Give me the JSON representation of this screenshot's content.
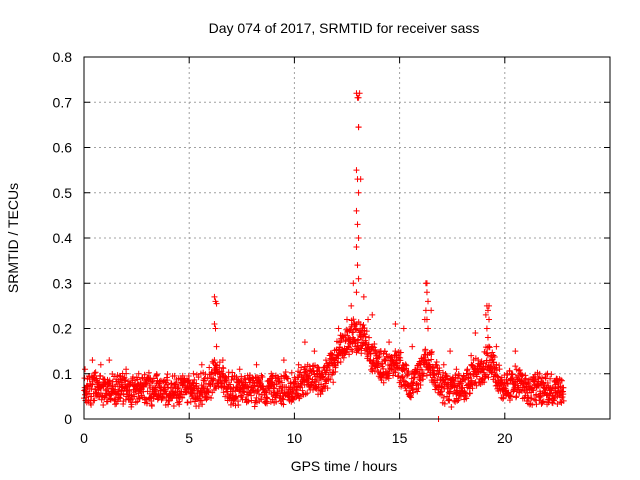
{
  "chart_data": {
    "type": "scatter",
    "title": "Day 074 of 2017, SRMTID for receiver sass",
    "xlabel": "GPS time / hours",
    "ylabel": "SRMTID / TECUs",
    "xlim": [
      0,
      25
    ],
    "ylim": [
      0,
      0.8
    ],
    "x_ticks": [
      0,
      5,
      10,
      15,
      20
    ],
    "y_ticks": [
      0,
      0.1,
      0.2,
      0.3,
      0.4,
      0.5,
      0.6,
      0.7,
      0.8
    ],
    "x_tick_labels": [
      "0",
      "5",
      "10",
      "15",
      "20"
    ],
    "y_tick_labels": [
      "0",
      "0.1",
      "0.2",
      "0.3",
      "0.4",
      "0.5",
      "0.6",
      "0.7",
      "0.8"
    ],
    "grid": true,
    "marker": "+",
    "color": "#ff0000",
    "series": [
      {
        "name": "SRMTID",
        "x_range": [
          0,
          22.8
        ],
        "baseline_mean": 0.065,
        "baseline_spread": 0.03,
        "features": [
          {
            "x": 6.25,
            "values": [
              0.27,
              0.26,
              0.255,
              0.21,
              0.2,
              0.16,
              0.13,
              0.12
            ]
          },
          {
            "x": 13.0,
            "values": [
              0.72,
              0.71,
              0.645,
              0.55,
              0.53,
              0.5,
              0.46,
              0.43,
              0.4,
              0.38,
              0.34,
              0.31,
              0.28
            ]
          },
          {
            "x": 16.3,
            "values": [
              0.3,
              0.28,
              0.26,
              0.24,
              0.22,
              0.2
            ]
          },
          {
            "x": 19.2,
            "values": [
              0.25,
              0.24,
              0.22,
              0.2,
              0.18
            ]
          }
        ],
        "points": [
          [
            0.05,
            0.11
          ],
          [
            0.4,
            0.13
          ],
          [
            0.8,
            0.12
          ],
          [
            1.2,
            0.13
          ],
          [
            2.0,
            0.11
          ],
          [
            2.6,
            0.1
          ],
          [
            3.1,
            0.09
          ],
          [
            4.0,
            0.07
          ],
          [
            4.6,
            0.09
          ],
          [
            5.2,
            0.1
          ],
          [
            5.6,
            0.12
          ],
          [
            6.6,
            0.13
          ],
          [
            7.4,
            0.11
          ],
          [
            8.2,
            0.12
          ],
          [
            8.9,
            0.1
          ],
          [
            9.5,
            0.13
          ],
          [
            10.2,
            0.12
          ],
          [
            10.5,
            0.17
          ],
          [
            10.95,
            0.15
          ],
          [
            11.5,
            0.13
          ],
          [
            11.9,
            0.12
          ],
          [
            12.1,
            0.2
          ],
          [
            12.2,
            0.17
          ],
          [
            12.5,
            0.22
          ],
          [
            12.7,
            0.25
          ],
          [
            12.8,
            0.3
          ],
          [
            13.05,
            0.645
          ],
          [
            13.05,
            0.71
          ],
          [
            13.1,
            0.72
          ],
          [
            13.15,
            0.53
          ],
          [
            13.3,
            0.27
          ],
          [
            13.5,
            0.22
          ],
          [
            13.7,
            0.23
          ],
          [
            14.1,
            0.15
          ],
          [
            14.5,
            0.17
          ],
          [
            14.8,
            0.21
          ],
          [
            15.2,
            0.2
          ],
          [
            15.6,
            0.16
          ],
          [
            16.0,
            0.12
          ],
          [
            16.2,
            0.22
          ],
          [
            16.3,
            0.3
          ],
          [
            16.5,
            0.24
          ],
          [
            17.1,
            0.12
          ],
          [
            17.4,
            0.15
          ],
          [
            17.7,
            0.11
          ],
          [
            18.0,
            0.09
          ],
          [
            18.4,
            0.14
          ],
          [
            18.6,
            0.19
          ],
          [
            19.1,
            0.23
          ],
          [
            19.25,
            0.25
          ],
          [
            19.6,
            0.16
          ],
          [
            20.1,
            0.1
          ],
          [
            20.5,
            0.15
          ],
          [
            21.0,
            0.08
          ],
          [
            21.5,
            0.07
          ],
          [
            22.0,
            0.07
          ],
          [
            22.5,
            0.05
          ],
          [
            22.8,
            0.04
          ]
        ]
      }
    ]
  }
}
